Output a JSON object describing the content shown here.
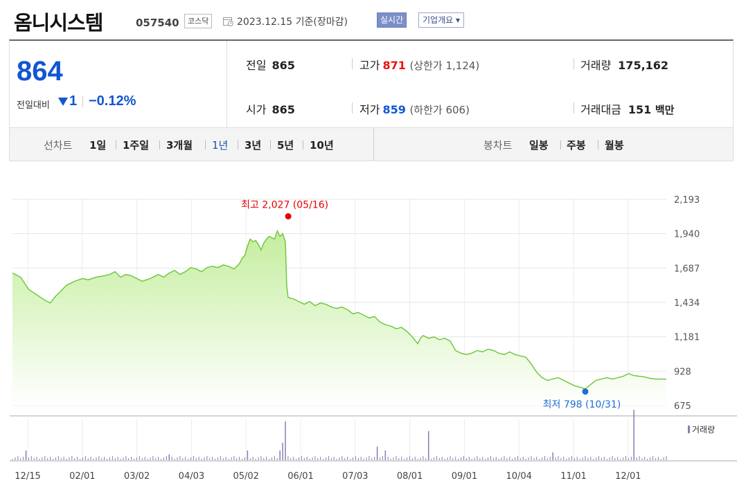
{
  "header": {
    "company": "옴니시스템",
    "code": "057540",
    "market": "코스닥",
    "base_date": "2023.12.15 기준(장마감)",
    "realtime": "실시간",
    "company_info": "기업개요 ▾"
  },
  "summary": {
    "price": "864",
    "change_label": "전일대비",
    "change_value": "1",
    "change_pct": "−0.12%",
    "prev_close_label": "전일",
    "prev_close": "865",
    "open_label": "시가",
    "open": "865",
    "high_label": "고가",
    "high": "871",
    "upper_limit": "(상한가 1,124)",
    "low_label": "저가",
    "low": "859",
    "lower_limit": "(하한가 606)",
    "volume_label": "거래량",
    "volume": "175,162",
    "amount_label": "거래대금",
    "amount": "151",
    "amount_unit": "백만"
  },
  "period_bar": {
    "line_label": "선차트",
    "line_periods": [
      "1일",
      "1주일",
      "3개월",
      "1년",
      "3년",
      "5년",
      "10년"
    ],
    "active_period": "1년",
    "candle_label": "봉차트",
    "candle_periods": [
      "일봉",
      "주봉",
      "월봉"
    ]
  },
  "chart_data": {
    "type": "area",
    "y_ticks": [
      "2,193",
      "1,940",
      "1,687",
      "1,434",
      "1,181",
      "928",
      "675"
    ],
    "ylim": [
      675,
      2193
    ],
    "x_ticks": [
      "12/15",
      "02/01",
      "03/02",
      "04/03",
      "05/02",
      "06/01",
      "07/03",
      "08/01",
      "09/01",
      "10/04",
      "11/01",
      "12/01"
    ],
    "annotation_high": "최고 2,027 (05/16)",
    "annotation_low": "최저 798 (10/31)",
    "volume_label": "거래량",
    "line_color": "#72c840",
    "fill_top_color": "#c4ee9e",
    "high_color": "#e60000",
    "low_color": "#1f6fd6",
    "series": [
      {
        "x": 0,
        "y": 1650
      },
      {
        "x": 3,
        "y": 1620
      },
      {
        "x": 6,
        "y": 1530
      },
      {
        "x": 9,
        "y": 1490
      },
      {
        "x": 12,
        "y": 1450
      },
      {
        "x": 14,
        "y": 1430
      },
      {
        "x": 16,
        "y": 1480
      },
      {
        "x": 18,
        "y": 1520
      },
      {
        "x": 20,
        "y": 1560
      },
      {
        "x": 23,
        "y": 1590
      },
      {
        "x": 26,
        "y": 1610
      },
      {
        "x": 28,
        "y": 1600
      },
      {
        "x": 31,
        "y": 1620
      },
      {
        "x": 34,
        "y": 1630
      },
      {
        "x": 36,
        "y": 1640
      },
      {
        "x": 38,
        "y": 1660
      },
      {
        "x": 40,
        "y": 1620
      },
      {
        "x": 42,
        "y": 1640
      },
      {
        "x": 44,
        "y": 1630
      },
      {
        "x": 46,
        "y": 1610
      },
      {
        "x": 48,
        "y": 1590
      },
      {
        "x": 51,
        "y": 1610
      },
      {
        "x": 54,
        "y": 1640
      },
      {
        "x": 56,
        "y": 1620
      },
      {
        "x": 58,
        "y": 1650
      },
      {
        "x": 60,
        "y": 1670
      },
      {
        "x": 62,
        "y": 1640
      },
      {
        "x": 64,
        "y": 1660
      },
      {
        "x": 66,
        "y": 1690
      },
      {
        "x": 68,
        "y": 1680
      },
      {
        "x": 70,
        "y": 1660
      },
      {
        "x": 72,
        "y": 1690
      },
      {
        "x": 74,
        "y": 1700
      },
      {
        "x": 76,
        "y": 1690
      },
      {
        "x": 78,
        "y": 1710
      },
      {
        "x": 80,
        "y": 1700
      },
      {
        "x": 82,
        "y": 1680
      },
      {
        "x": 84,
        "y": 1720
      },
      {
        "x": 85,
        "y": 1760
      },
      {
        "x": 86,
        "y": 1780
      },
      {
        "x": 87,
        "y": 1850
      },
      {
        "x": 88,
        "y": 1900
      },
      {
        "x": 89,
        "y": 1880
      },
      {
        "x": 90,
        "y": 1890
      },
      {
        "x": 91,
        "y": 1860
      },
      {
        "x": 92,
        "y": 1820
      },
      {
        "x": 93,
        "y": 1870
      },
      {
        "x": 94,
        "y": 1900
      },
      {
        "x": 95,
        "y": 1920
      },
      {
        "x": 96,
        "y": 1910
      },
      {
        "x": 97,
        "y": 1900
      },
      {
        "x": 98,
        "y": 1960
      },
      {
        "x": 99,
        "y": 1920
      },
      {
        "x": 100,
        "y": 1940
      },
      {
        "x": 101,
        "y": 1880
      },
      {
        "x": 101.5,
        "y": 1560
      },
      {
        "x": 102,
        "y": 1470
      },
      {
        "x": 104,
        "y": 1460
      },
      {
        "x": 106,
        "y": 1440
      },
      {
        "x": 108,
        "y": 1420
      },
      {
        "x": 110,
        "y": 1440
      },
      {
        "x": 112,
        "y": 1410
      },
      {
        "x": 114,
        "y": 1430
      },
      {
        "x": 116,
        "y": 1420
      },
      {
        "x": 118,
        "y": 1400
      },
      {
        "x": 120,
        "y": 1390
      },
      {
        "x": 122,
        "y": 1400
      },
      {
        "x": 124,
        "y": 1380
      },
      {
        "x": 126,
        "y": 1350
      },
      {
        "x": 128,
        "y": 1360
      },
      {
        "x": 130,
        "y": 1340
      },
      {
        "x": 132,
        "y": 1320
      },
      {
        "x": 134,
        "y": 1330
      },
      {
        "x": 136,
        "y": 1290
      },
      {
        "x": 138,
        "y": 1270
      },
      {
        "x": 140,
        "y": 1260
      },
      {
        "x": 142,
        "y": 1240
      },
      {
        "x": 144,
        "y": 1250
      },
      {
        "x": 146,
        "y": 1220
      },
      {
        "x": 148,
        "y": 1180
      },
      {
        "x": 150,
        "y": 1130
      },
      {
        "x": 151,
        "y": 1170
      },
      {
        "x": 152,
        "y": 1190
      },
      {
        "x": 154,
        "y": 1170
      },
      {
        "x": 156,
        "y": 1180
      },
      {
        "x": 158,
        "y": 1160
      },
      {
        "x": 160,
        "y": 1170
      },
      {
        "x": 162,
        "y": 1150
      },
      {
        "x": 164,
        "y": 1080
      },
      {
        "x": 166,
        "y": 1060
      },
      {
        "x": 168,
        "y": 1050
      },
      {
        "x": 170,
        "y": 1060
      },
      {
        "x": 172,
        "y": 1080
      },
      {
        "x": 174,
        "y": 1070
      },
      {
        "x": 176,
        "y": 1090
      },
      {
        "x": 178,
        "y": 1080
      },
      {
        "x": 180,
        "y": 1060
      },
      {
        "x": 182,
        "y": 1050
      },
      {
        "x": 184,
        "y": 1070
      },
      {
        "x": 186,
        "y": 1050
      },
      {
        "x": 188,
        "y": 1040
      },
      {
        "x": 190,
        "y": 1030
      },
      {
        "x": 192,
        "y": 980
      },
      {
        "x": 194,
        "y": 920
      },
      {
        "x": 196,
        "y": 880
      },
      {
        "x": 198,
        "y": 860
      },
      {
        "x": 200,
        "y": 870
      },
      {
        "x": 202,
        "y": 880
      },
      {
        "x": 204,
        "y": 860
      },
      {
        "x": 206,
        "y": 840
      },
      {
        "x": 208,
        "y": 820
      },
      {
        "x": 210,
        "y": 810
      },
      {
        "x": 212,
        "y": 798
      },
      {
        "x": 214,
        "y": 830
      },
      {
        "x": 216,
        "y": 860
      },
      {
        "x": 218,
        "y": 870
      },
      {
        "x": 220,
        "y": 880
      },
      {
        "x": 222,
        "y": 870
      },
      {
        "x": 224,
        "y": 880
      },
      {
        "x": 226,
        "y": 890
      },
      {
        "x": 228,
        "y": 910
      },
      {
        "x": 230,
        "y": 895
      },
      {
        "x": 232,
        "y": 890
      },
      {
        "x": 234,
        "y": 885
      },
      {
        "x": 236,
        "y": 875
      },
      {
        "x": 238,
        "y": 870
      },
      {
        "x": 240,
        "y": 870
      },
      {
        "x": 242,
        "y": 868
      }
    ],
    "volume_spikes": [
      {
        "x": 101,
        "v": 1.0
      },
      {
        "x": 100,
        "v": 0.45
      },
      {
        "x": 99,
        "v": 0.25
      },
      {
        "x": 154,
        "v": 0.75
      },
      {
        "x": 230,
        "v": 1.3
      },
      {
        "x": 87,
        "v": 0.25
      },
      {
        "x": 5,
        "v": 0.25
      },
      {
        "x": 135,
        "v": 0.35
      },
      {
        "x": 138,
        "v": 0.25
      },
      {
        "x": 200,
        "v": 0.2
      },
      {
        "x": 58,
        "v": 0.15
      }
    ]
  }
}
